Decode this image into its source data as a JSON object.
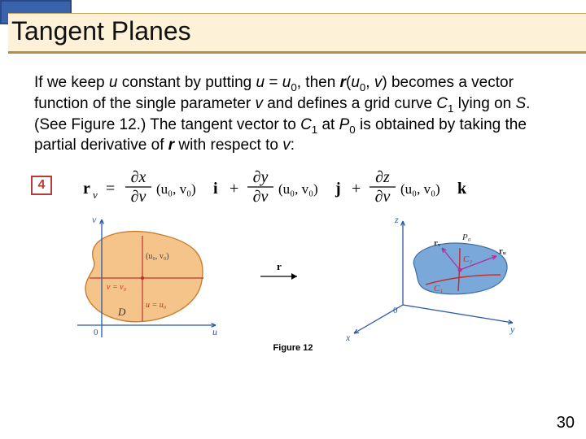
{
  "header": {
    "title": "Tangent Planes",
    "accent_color": "#3a63ad",
    "band_color": "#fdf1d7"
  },
  "paragraph": {
    "segments": [
      {
        "t": "If we keep "
      },
      {
        "t": "u",
        "cls": "i"
      },
      {
        "t": " constant by putting "
      },
      {
        "t": "u",
        "cls": "i"
      },
      {
        "t": " = "
      },
      {
        "t": "u",
        "cls": "i"
      },
      {
        "t": "0",
        "sub": true
      },
      {
        "t": ", then "
      },
      {
        "t": "r",
        "cls": "bi"
      },
      {
        "t": "("
      },
      {
        "t": "u",
        "cls": "i"
      },
      {
        "t": "0",
        "sub": true
      },
      {
        "t": ", "
      },
      {
        "t": "v",
        "cls": "i"
      },
      {
        "t": ") becomes a vector function of the single parameter "
      },
      {
        "t": "v",
        "cls": "i"
      },
      {
        "t": " and defines a grid curve "
      },
      {
        "t": "C",
        "cls": "i"
      },
      {
        "t": "1",
        "sub": true
      },
      {
        "t": " lying on "
      },
      {
        "t": "S",
        "cls": "i"
      },
      {
        "t": ". (See Figure 12.) The tangent vector to "
      },
      {
        "t": "C",
        "cls": "i"
      },
      {
        "t": "1",
        "sub": true
      },
      {
        "t": " at "
      },
      {
        "t": "P",
        "cls": "i"
      },
      {
        "t": "0",
        "sub": true
      },
      {
        "t": " is obtained by taking the partial derivative of "
      },
      {
        "t": "r",
        "cls": "bi"
      },
      {
        "t": " with respect to "
      },
      {
        "t": "v",
        "cls": "i"
      },
      {
        "t": ":"
      }
    ]
  },
  "equation": {
    "number": "4",
    "box_border": "#b83b3b",
    "lhs_main": "r",
    "lhs_sub": "v",
    "terms": [
      {
        "num": "∂x",
        "den": "∂v",
        "arg": "(u₀, v₀)",
        "unit": "i"
      },
      {
        "num": "∂y",
        "den": "∂v",
        "arg": "(u₀, v₀)",
        "unit": "j"
      },
      {
        "num": "∂z",
        "den": "∂v",
        "arg": "(u₀, v₀)",
        "unit": "k"
      }
    ],
    "text_color": "#000000",
    "font_size": 20
  },
  "figure": {
    "caption": "Figure 12",
    "left": {
      "region_fill": "#f4c48a",
      "region_stroke": "#c97e2e",
      "axis_color": "#2a5aa0",
      "label_u_axis": "u",
      "label_v_axis": "v",
      "origin_label": "0",
      "pt_label": "(u₀, v₀)",
      "hline_label": "v = v₀",
      "vline_label": "u = u₀",
      "D_label": "D",
      "grid_color": "#c03030"
    },
    "arrow_label": "r",
    "right": {
      "axis_color": "#2a5aa0",
      "x_label": "x",
      "y_label": "y",
      "z_label": "z",
      "origin_label": "0",
      "surface_fill": "#7aa8d8",
      "surface_edge": "#3f6fa8",
      "curve_color": "#c03030",
      "C1_label": "C₁",
      "C2_label": "C₂",
      "P0_label": "P₀",
      "rv_label": "rᵥ",
      "ru_label": "rᵤ",
      "tangent_color": "#b02fa0"
    }
  },
  "page_number": "30"
}
